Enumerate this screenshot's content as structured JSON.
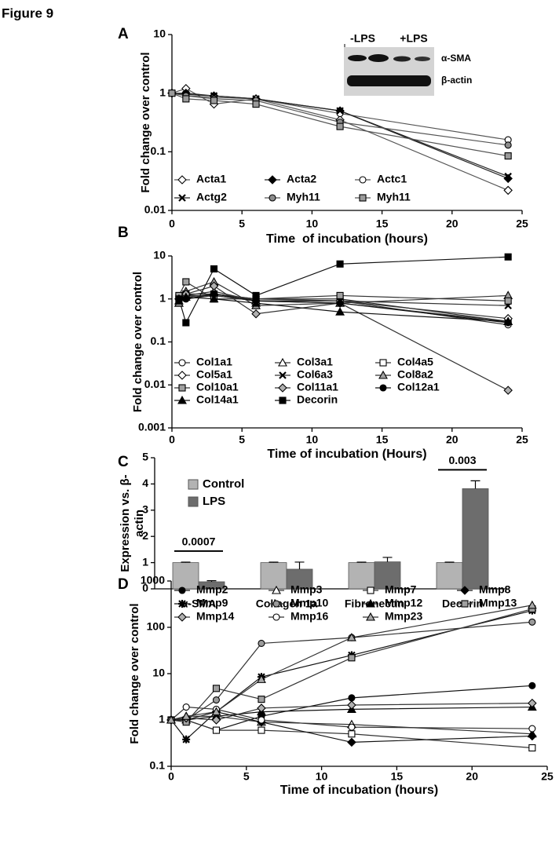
{
  "figure_title": "Figure 9",
  "chart_data": [
    {
      "panel": "A",
      "type": "line",
      "log_y": true,
      "xlabel": "Time  of incubation (hours)",
      "ylabel": "Fold change over control",
      "x": [
        0,
        1,
        3,
        6,
        12,
        24
      ],
      "xlim": [
        0,
        25
      ],
      "xticks": [
        0,
        5,
        10,
        15,
        20,
        25
      ],
      "ylim": [
        0.01,
        10
      ],
      "yticks": [
        0.01,
        0.1,
        1,
        10
      ],
      "inset": {
        "left_label": "-LPS",
        "right_label": "+LPS",
        "top_band": "α-SMA",
        "bottom_band": "β-actin"
      },
      "series": [
        {
          "name": "Acta1",
          "color": "#555555",
          "fill": "#ffffff",
          "marker": "diamond",
          "values": [
            1,
            1.2,
            0.65,
            0.8,
            0.35,
            0.022
          ]
        },
        {
          "name": "Acta2",
          "color": "#222222",
          "fill": "#000000",
          "marker": "diamond",
          "values": [
            1,
            1.0,
            0.9,
            0.8,
            0.5,
            0.035
          ]
        },
        {
          "name": "Actc1",
          "color": "#555555",
          "fill": "#ffffff",
          "marker": "circle",
          "values": [
            1,
            0.9,
            0.85,
            0.8,
            0.45,
            0.16
          ]
        },
        {
          "name": "Actg2",
          "color": "#222222",
          "fill": "#000000",
          "marker": "x",
          "values": [
            1,
            0.95,
            0.9,
            0.8,
            0.5,
            0.038
          ]
        },
        {
          "name": "Myh11",
          "color": "#555555",
          "fill": "#8c8c8c",
          "marker": "circle",
          "values": [
            1,
            0.9,
            0.8,
            0.75,
            0.32,
            0.13
          ]
        },
        {
          "name": "Myh11",
          "color": "#555555",
          "fill": "#9a9a9a",
          "marker": "square",
          "values": [
            1,
            0.8,
            0.75,
            0.65,
            0.27,
            0.085
          ]
        }
      ]
    },
    {
      "panel": "B",
      "type": "line",
      "log_y": true,
      "xlabel": "Time of incubation (Hours)",
      "ylabel": "Fold change over control",
      "x": [
        0.5,
        1,
        3,
        6,
        12,
        24
      ],
      "xlim": [
        0,
        25
      ],
      "xticks": [
        0,
        5,
        10,
        15,
        20,
        25
      ],
      "ylim": [
        0.001,
        10
      ],
      "yticks": [
        0.001,
        0.01,
        0.1,
        1,
        10
      ],
      "series": [
        {
          "name": "Col1a1",
          "color": "#333333",
          "fill": "#ffffff",
          "marker": "circle",
          "values": [
            1,
            1,
            1.2,
            0.9,
            0.9,
            0.25
          ]
        },
        {
          "name": "Col3a1",
          "color": "#333333",
          "fill": "#ffffff",
          "marker": "triangle",
          "values": [
            0.8,
            1.2,
            1.5,
            0.9,
            0.8,
            0.3
          ]
        },
        {
          "name": "Col4a5",
          "color": "#333333",
          "fill": "#ffffff",
          "marker": "square",
          "values": [
            1.1,
            1.3,
            1.3,
            1.0,
            1.0,
            0.3
          ]
        },
        {
          "name": "Col5a1",
          "color": "#333333",
          "fill": "#ffffff",
          "marker": "diamond",
          "values": [
            1,
            1.2,
            1.2,
            0.9,
            0.9,
            0.35
          ]
        },
        {
          "name": "Col6a3",
          "color": "#333333",
          "fill": "#000000",
          "marker": "x",
          "values": [
            1,
            1.1,
            1.3,
            1,
            0.9,
            0.7
          ]
        },
        {
          "name": "Col8a2",
          "color": "#333333",
          "fill": "#a0a0a0",
          "marker": "triangle",
          "values": [
            0.8,
            1.5,
            2.5,
            0.7,
            0.8,
            1.2
          ]
        },
        {
          "name": "Col10a1",
          "color": "#333333",
          "fill": "#a0a0a0",
          "marker": "square",
          "values": [
            1.2,
            2.5,
            1.0,
            1.0,
            1.2,
            0.9
          ]
        },
        {
          "name": "Col11a1",
          "color": "#333333",
          "fill": "#b0b0b0",
          "marker": "diamond",
          "values": [
            1,
            1.3,
            2,
            0.45,
            0.8,
            0.0075
          ]
        },
        {
          "name": "Col12a1",
          "color": "#111111",
          "fill": "#000000",
          "marker": "circle",
          "values": [
            1,
            1,
            1.3,
            0.9,
            0.8,
            0.28
          ]
        },
        {
          "name": "Col14a1",
          "color": "#111111",
          "fill": "#000000",
          "marker": "triangle",
          "values": [
            0.9,
            1.1,
            1,
            0.8,
            0.5,
            0.3
          ]
        },
        {
          "name": "Decorin",
          "color": "#111111",
          "fill": "#000000",
          "marker": "square",
          "values": [
            1,
            0.28,
            5,
            1.2,
            6.5,
            9.5
          ]
        }
      ]
    },
    {
      "panel": "C",
      "type": "bar",
      "ylabel_lines": [
        "Expression vs. β-",
        "actin"
      ],
      "categories": [
        "α-SMA",
        "Collagen 1a",
        "Fibronectin",
        "Decorin"
      ],
      "ylim": [
        0,
        5
      ],
      "yticks": [
        0,
        1,
        2,
        3,
        4,
        5
      ],
      "annotations": [
        "0.0007",
        "0.003"
      ],
      "series": [
        {
          "name": "Control",
          "color": "#b3b3b3",
          "values": [
            1,
            1,
            1,
            1
          ],
          "errors": [
            0.02,
            0.02,
            0.02,
            0.02
          ]
        },
        {
          "name": "LPS",
          "color": "#6d6d6d",
          "values": [
            0.27,
            0.75,
            1.03,
            3.82
          ],
          "errors": [
            0.04,
            0.27,
            0.17,
            0.3
          ]
        }
      ]
    },
    {
      "panel": "D",
      "type": "line",
      "log_y": true,
      "xlabel": "Time of incubation (hours)",
      "ylabel": "Fold change over control",
      "x": [
        0,
        1,
        3,
        6,
        12,
        24
      ],
      "xlim": [
        0,
        25
      ],
      "xticks": [
        0,
        5,
        10,
        15,
        20,
        25
      ],
      "ylim": [
        0.1,
        1000
      ],
      "yticks": [
        0.1,
        1,
        10,
        100,
        1000
      ],
      "series": [
        {
          "name": "Mmp2",
          "color": "#111111",
          "fill": "#000000",
          "marker": "circle",
          "values": [
            1,
            1,
            0.6,
            1.2,
            3,
            5.5
          ]
        },
        {
          "name": "Mmp3",
          "color": "#333333",
          "fill": "#ffffff",
          "marker": "triangle",
          "values": [
            1,
            1.2,
            1.2,
            0.9,
            0.8,
            0.5
          ]
        },
        {
          "name": "Mmp7",
          "color": "#333333",
          "fill": "#ffffff",
          "marker": "square",
          "values": [
            1,
            1,
            0.6,
            0.6,
            0.5,
            0.25
          ]
        },
        {
          "name": "Mmp8",
          "color": "#111111",
          "fill": "#000000",
          "marker": "diamond",
          "values": [
            1,
            1,
            1.5,
            0.9,
            0.33,
            0.45
          ]
        },
        {
          "name": "Mmp9",
          "color": "#111111",
          "fill": "#000000",
          "marker": "star",
          "values": [
            1,
            0.38,
            1.5,
            8.5,
            25,
            230
          ]
        },
        {
          "name": "Mmp10",
          "color": "#333333",
          "fill": "#9a9a9a",
          "marker": "circle",
          "values": [
            1,
            1,
            2.7,
            45,
            60,
            130
          ]
        },
        {
          "name": "Mmp12",
          "color": "#111111",
          "fill": "#000000",
          "marker": "triangle",
          "values": [
            1,
            1,
            1.2,
            1.5,
            1.7,
            1.9
          ]
        },
        {
          "name": "Mmp13",
          "color": "#333333",
          "fill": "#a0a0a0",
          "marker": "square",
          "values": [
            1,
            0.9,
            4.8,
            2.8,
            22,
            250
          ]
        },
        {
          "name": "Mmp14",
          "color": "#333333",
          "fill": "#b0b0b0",
          "marker": "diamond",
          "values": [
            1,
            1.1,
            1.0,
            1.8,
            2.1,
            2.3
          ]
        },
        {
          "name": "Mmp16",
          "color": "#333333",
          "fill": "#ffffff",
          "marker": "circle",
          "values": [
            1,
            1.9,
            1.7,
            1.0,
            0.7,
            0.65
          ]
        },
        {
          "name": "Mmp23",
          "color": "#333333",
          "fill": "#a8a8a8",
          "marker": "triangle",
          "values": [
            1,
            1.2,
            1.5,
            7.5,
            60,
            300
          ]
        }
      ]
    }
  ]
}
